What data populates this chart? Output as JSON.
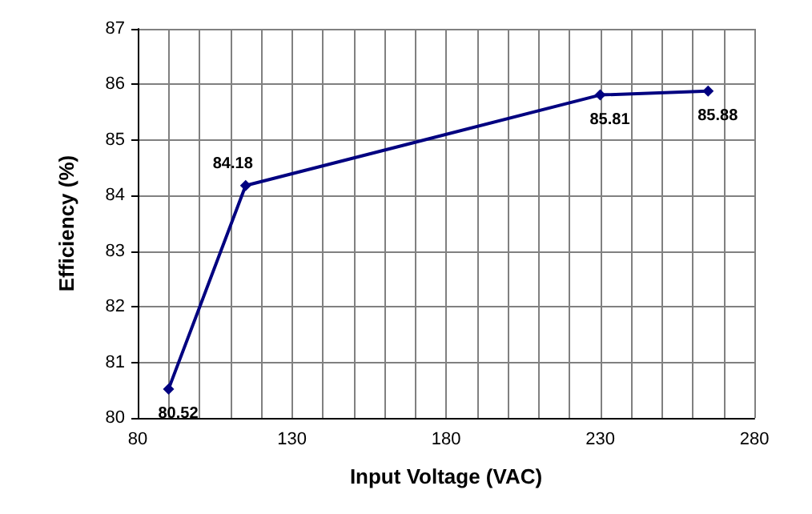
{
  "chart_data": {
    "type": "line",
    "xlabel": "Input Voltage (VAC)",
    "ylabel": "Efficiency (%)",
    "x": [
      90,
      115,
      230,
      265
    ],
    "series": [
      {
        "color": "#000080",
        "values": [
          80.52,
          84.18,
          85.81,
          85.88
        ]
      }
    ],
    "xlim": [
      80,
      280
    ],
    "xticks": [
      80,
      {
        "value": 90,
        "label": null
      },
      {
        "value": 100,
        "label": null
      },
      {
        "value": 110,
        "label": null
      },
      {
        "value": 120,
        "label": null
      },
      130,
      {
        "value": 140,
        "label": null
      },
      {
        "value": 150,
        "label": null
      },
      {
        "value": 160,
        "label": null
      },
      {
        "value": 170,
        "label": null
      },
      180,
      {
        "value": 190,
        "label": null
      },
      {
        "value": 200,
        "label": null
      },
      {
        "value": 210,
        "label": null
      },
      {
        "value": 220,
        "label": null
      },
      230,
      {
        "value": 240,
        "label": null
      },
      {
        "value": 250,
        "label": null
      },
      {
        "value": 260,
        "label": null
      },
      {
        "value": 270,
        "label": null
      },
      280
    ],
    "ylim": [
      80,
      87
    ],
    "yticks": [
      80,
      81,
      82,
      83,
      84,
      85,
      86,
      87
    ],
    "grid": true,
    "marker": "diamond",
    "line_style": "solid",
    "data_labels": true
  }
}
